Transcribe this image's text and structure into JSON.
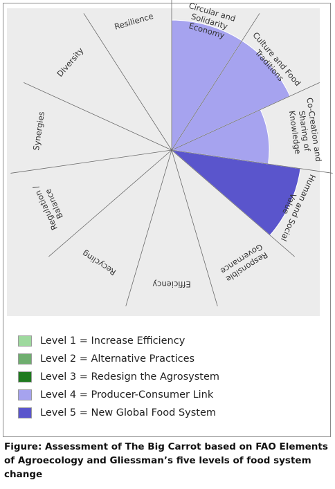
{
  "chart_data": {
    "type": "polar-area",
    "categories": [
      "Efficiency",
      "Recycling",
      "Regulation /\nBalance",
      "Synergies",
      "Diversity",
      "Resilience",
      "Circular and\nSolidarity\nEconomy",
      "Culture and Food\nTraditions",
      "Co-Creation and\nSharing of\nKnowledge",
      "Human and Social\nValue",
      "Responsible\nGovernance"
    ],
    "values": [
      0,
      0,
      0,
      0,
      0,
      0,
      4,
      4,
      3,
      4,
      0
    ],
    "level_colors": {
      "1": "#9ed99e",
      "2": "#6fae6f",
      "3": "#1f7a1f",
      "4": "#a6a3ef",
      "5": "#5a55cc"
    },
    "segment_colors": [
      "",
      "",
      "",
      "",
      "",
      "",
      "#a6a3ef",
      "#a6a3ef",
      "#a6a3ef",
      "#5a55cc",
      ""
    ],
    "rmax": 5
  },
  "legend": [
    {
      "label": "Level 1 = Increase Efficiency",
      "color": "#9ed99e"
    },
    {
      "label": "Level 2 = Alternative Practices",
      "color": "#6fae6f"
    },
    {
      "label": "Level 3 = Redesign the Agrosystem",
      "color": "#1f7a1f"
    },
    {
      "label": "Level 4 = Producer-Consumer Link",
      "color": "#a6a3ef"
    },
    {
      "label": "Level 5 = New Global Food System",
      "color": "#5a55cc"
    }
  ],
  "caption": "Figure: Assessment of The Big Carrot based on FAO Elements of Agroecology and Gliessman’s five levels of food system change"
}
